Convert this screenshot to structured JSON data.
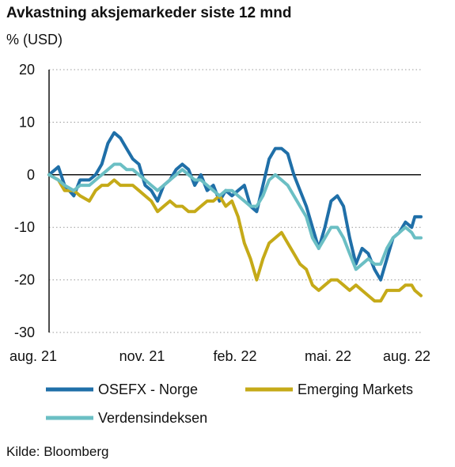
{
  "chart_data": {
    "type": "line",
    "title": "Avkastning aksjemarkeder siste 12 mnd",
    "ylabel": "% (USD)",
    "source": "Kilde: Bloomberg",
    "ylim": [
      -30,
      20
    ],
    "yticks": [
      20,
      10,
      0,
      -10,
      -20,
      -30
    ],
    "xlim": [
      0,
      12
    ],
    "xticks": [
      {
        "label": "aug. 21",
        "x": 0
      },
      {
        "label": "nov. 21",
        "x": 3
      },
      {
        "label": "feb. 22",
        "x": 6
      },
      {
        "label": "mai. 22",
        "x": 9
      },
      {
        "label": "aug. 22",
        "x": 12
      }
    ],
    "grid": "horizontal-dotted",
    "legend_position": "bottom",
    "series": [
      {
        "name": "OSEFX - Norge",
        "color": "#1f6fa8",
        "points": [
          [
            0,
            0
          ],
          [
            0.3,
            1.5
          ],
          [
            0.5,
            -2
          ],
          [
            0.8,
            -4
          ],
          [
            1,
            -1
          ],
          [
            1.3,
            -1
          ],
          [
            1.5,
            0
          ],
          [
            1.7,
            2
          ],
          [
            1.9,
            6
          ],
          [
            2.1,
            8
          ],
          [
            2.3,
            7
          ],
          [
            2.5,
            5
          ],
          [
            2.7,
            3
          ],
          [
            2.9,
            2
          ],
          [
            3.1,
            -2
          ],
          [
            3.3,
            -3
          ],
          [
            3.5,
            -5
          ],
          [
            3.7,
            -2
          ],
          [
            3.9,
            -1
          ],
          [
            4.1,
            1
          ],
          [
            4.3,
            2
          ],
          [
            4.5,
            1
          ],
          [
            4.7,
            -2
          ],
          [
            4.9,
            0
          ],
          [
            5.1,
            -3
          ],
          [
            5.3,
            -2
          ],
          [
            5.5,
            -5
          ],
          [
            5.7,
            -3
          ],
          [
            5.9,
            -4
          ],
          [
            6.1,
            -3
          ],
          [
            6.3,
            -2
          ],
          [
            6.5,
            -6
          ],
          [
            6.7,
            -7
          ],
          [
            6.9,
            -2
          ],
          [
            7.1,
            3
          ],
          [
            7.3,
            5
          ],
          [
            7.5,
            5
          ],
          [
            7.7,
            4
          ],
          [
            7.9,
            0
          ],
          [
            8.1,
            -3
          ],
          [
            8.3,
            -6
          ],
          [
            8.5,
            -10
          ],
          [
            8.7,
            -14
          ],
          [
            8.9,
            -10
          ],
          [
            9.1,
            -5
          ],
          [
            9.3,
            -4
          ],
          [
            9.5,
            -6
          ],
          [
            9.7,
            -12
          ],
          [
            9.9,
            -17
          ],
          [
            10.1,
            -14
          ],
          [
            10.3,
            -15
          ],
          [
            10.5,
            -18
          ],
          [
            10.7,
            -20
          ],
          [
            10.9,
            -16
          ],
          [
            11.1,
            -12
          ],
          [
            11.3,
            -11
          ],
          [
            11.5,
            -9
          ],
          [
            11.7,
            -10
          ],
          [
            11.8,
            -8
          ],
          [
            12,
            -8
          ]
        ]
      },
      {
        "name": "Emerging Markets",
        "color": "#c5aa18",
        "points": [
          [
            0,
            0
          ],
          [
            0.3,
            -1
          ],
          [
            0.5,
            -3
          ],
          [
            0.8,
            -3
          ],
          [
            1,
            -4
          ],
          [
            1.3,
            -5
          ],
          [
            1.5,
            -3
          ],
          [
            1.7,
            -2
          ],
          [
            1.9,
            -2
          ],
          [
            2.1,
            -1
          ],
          [
            2.3,
            -2
          ],
          [
            2.5,
            -2
          ],
          [
            2.7,
            -2
          ],
          [
            2.9,
            -3
          ],
          [
            3.1,
            -4
          ],
          [
            3.3,
            -5
          ],
          [
            3.5,
            -7
          ],
          [
            3.7,
            -6
          ],
          [
            3.9,
            -5
          ],
          [
            4.1,
            -6
          ],
          [
            4.3,
            -6
          ],
          [
            4.5,
            -7
          ],
          [
            4.7,
            -7
          ],
          [
            4.9,
            -6
          ],
          [
            5.1,
            -5
          ],
          [
            5.3,
            -5
          ],
          [
            5.5,
            -4
          ],
          [
            5.7,
            -6
          ],
          [
            5.9,
            -5
          ],
          [
            6.1,
            -8
          ],
          [
            6.3,
            -13
          ],
          [
            6.5,
            -16
          ],
          [
            6.7,
            -20
          ],
          [
            6.9,
            -16
          ],
          [
            7.1,
            -13
          ],
          [
            7.3,
            -12
          ],
          [
            7.5,
            -11
          ],
          [
            7.7,
            -13
          ],
          [
            7.9,
            -15
          ],
          [
            8.1,
            -17
          ],
          [
            8.3,
            -18
          ],
          [
            8.5,
            -21
          ],
          [
            8.7,
            -22
          ],
          [
            8.9,
            -21
          ],
          [
            9.1,
            -20
          ],
          [
            9.3,
            -20
          ],
          [
            9.5,
            -21
          ],
          [
            9.7,
            -22
          ],
          [
            9.9,
            -21
          ],
          [
            10.1,
            -22
          ],
          [
            10.3,
            -23
          ],
          [
            10.5,
            -24
          ],
          [
            10.7,
            -24
          ],
          [
            10.9,
            -22
          ],
          [
            11.1,
            -22
          ],
          [
            11.3,
            -22
          ],
          [
            11.5,
            -21
          ],
          [
            11.7,
            -21
          ],
          [
            11.8,
            -22
          ],
          [
            12,
            -23
          ]
        ]
      },
      {
        "name": "Verdensindeksen",
        "color": "#6bbfc4",
        "points": [
          [
            0,
            0
          ],
          [
            0.3,
            -1
          ],
          [
            0.5,
            -2
          ],
          [
            0.8,
            -3
          ],
          [
            1,
            -2
          ],
          [
            1.3,
            -2
          ],
          [
            1.5,
            -1
          ],
          [
            1.7,
            0
          ],
          [
            1.9,
            1
          ],
          [
            2.1,
            2
          ],
          [
            2.3,
            2
          ],
          [
            2.5,
            1
          ],
          [
            2.7,
            1
          ],
          [
            2.9,
            0
          ],
          [
            3.1,
            -1
          ],
          [
            3.3,
            -2
          ],
          [
            3.5,
            -3
          ],
          [
            3.7,
            -2
          ],
          [
            3.9,
            -1
          ],
          [
            4.1,
            0
          ],
          [
            4.3,
            1
          ],
          [
            4.5,
            0
          ],
          [
            4.7,
            -1
          ],
          [
            4.9,
            -1
          ],
          [
            5.1,
            -2
          ],
          [
            5.3,
            -3
          ],
          [
            5.5,
            -4
          ],
          [
            5.7,
            -3
          ],
          [
            5.9,
            -3
          ],
          [
            6.1,
            -4
          ],
          [
            6.3,
            -5
          ],
          [
            6.5,
            -6
          ],
          [
            6.7,
            -6
          ],
          [
            6.9,
            -4
          ],
          [
            7.1,
            -1
          ],
          [
            7.3,
            0
          ],
          [
            7.5,
            -1
          ],
          [
            7.7,
            -2
          ],
          [
            7.9,
            -4
          ],
          [
            8.1,
            -6
          ],
          [
            8.3,
            -8
          ],
          [
            8.5,
            -12
          ],
          [
            8.7,
            -14
          ],
          [
            8.9,
            -12
          ],
          [
            9.1,
            -10
          ],
          [
            9.3,
            -10
          ],
          [
            9.5,
            -12
          ],
          [
            9.7,
            -15
          ],
          [
            9.9,
            -18
          ],
          [
            10.1,
            -17
          ],
          [
            10.3,
            -16
          ],
          [
            10.5,
            -17
          ],
          [
            10.7,
            -17
          ],
          [
            10.9,
            -14
          ],
          [
            11.1,
            -12
          ],
          [
            11.3,
            -11
          ],
          [
            11.5,
            -10
          ],
          [
            11.7,
            -11
          ],
          [
            11.8,
            -12
          ],
          [
            12,
            -12
          ]
        ]
      }
    ]
  }
}
